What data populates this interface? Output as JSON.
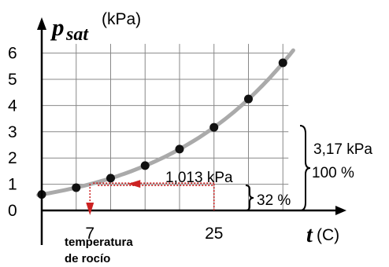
{
  "chart_data": {
    "type": "line",
    "title": "",
    "ylabel_symbol": "p",
    "ylabel_subscript": "sat",
    "ylabel_unit": "(kPa)",
    "xlabel_symbol": "t",
    "xlabel_unit": "(C)",
    "ylim": [
      0,
      6.6
    ],
    "xlim": [
      -1,
      38
    ],
    "grid": true,
    "y_ticks": [
      "0",
      "1",
      "2",
      "3",
      "4",
      "5",
      "6"
    ],
    "x_ticks": [
      {
        "value": 7,
        "label": "7"
      },
      {
        "value": 25,
        "label": "25"
      }
    ],
    "points": [
      {
        "x": 0,
        "y": 0.61
      },
      {
        "x": 5,
        "y": 0.87
      },
      {
        "x": 10,
        "y": 1.23
      },
      {
        "x": 15,
        "y": 1.71
      },
      {
        "x": 20,
        "y": 2.34
      },
      {
        "x": 25,
        "y": 3.17
      },
      {
        "x": 30,
        "y": 4.25
      },
      {
        "x": 35,
        "y": 5.63
      }
    ],
    "dew_point": {
      "x": 7,
      "y": 1.013
    },
    "state_point": {
      "x": 25,
      "y": 1.013
    },
    "annotations": {
      "dew_value": "1,013 kPa",
      "sat_value": "3,17 kPa",
      "hundred_pct": "100 %",
      "rel_humidity": "32 %",
      "dew_label_line1": "temperatura",
      "dew_label_line2": "de rocío"
    },
    "colors": {
      "curve": "#aaaaaa",
      "points": "#111111",
      "arrow": "#cc2222",
      "grid": "#888888",
      "axis": "#000000"
    }
  }
}
